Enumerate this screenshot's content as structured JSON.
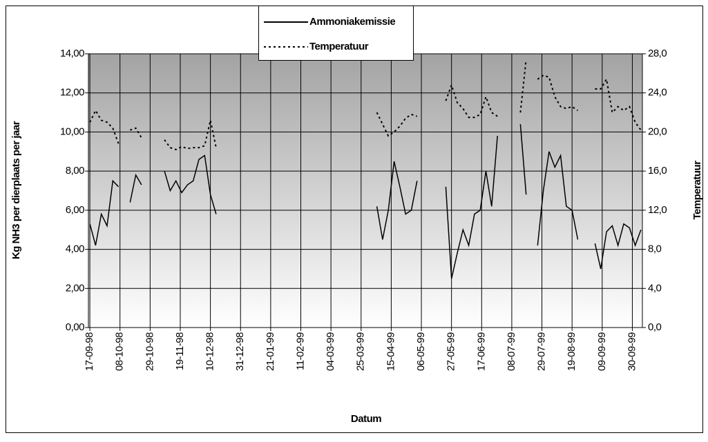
{
  "chart_data": {
    "type": "line",
    "x_label": "Datum",
    "y_label": "Kg NH3 per dierplaats per jaar",
    "y2_label": "Temperatuur",
    "x": [
      "17-09-98",
      "21-09-98",
      "25-09-98",
      "29-09-98",
      "03-10-98",
      "07-10-98",
      "11-10-98",
      "15-10-98",
      "19-10-98",
      "23-10-98",
      "27-10-98",
      "31-10-98",
      "04-11-98",
      "08-11-98",
      "12-11-98",
      "16-11-98",
      "20-11-98",
      "24-11-98",
      "28-11-98",
      "02-12-98",
      "06-12-98",
      "10-12-98",
      "14-12-98",
      "18-12-98",
      "22-12-98",
      "26-12-98",
      "30-12-98",
      "03-01-99",
      "07-01-99",
      "11-01-99",
      "15-01-99",
      "19-01-99",
      "23-01-99",
      "27-01-99",
      "31-01-99",
      "04-02-99",
      "08-02-99",
      "12-02-99",
      "16-02-99",
      "20-02-99",
      "24-02-99",
      "28-02-99",
      "04-03-99",
      "08-03-99",
      "12-03-99",
      "16-03-99",
      "20-03-99",
      "24-03-99",
      "28-03-99",
      "01-04-99",
      "05-04-99",
      "09-04-99",
      "13-04-99",
      "17-04-99",
      "21-04-99",
      "25-04-99",
      "29-04-99",
      "03-05-99",
      "07-05-99",
      "11-05-99",
      "15-05-99",
      "19-05-99",
      "23-05-99",
      "27-05-99",
      "31-05-99",
      "04-06-99",
      "08-06-99",
      "12-06-99",
      "16-06-99",
      "20-06-99",
      "24-06-99",
      "28-06-99",
      "02-07-99",
      "06-07-99",
      "10-07-99",
      "14-07-99",
      "18-07-99",
      "22-07-99",
      "26-07-99",
      "30-07-99",
      "03-08-99",
      "07-08-99",
      "11-08-99",
      "15-08-99",
      "19-08-99",
      "23-08-99",
      "27-08-99",
      "31-08-99",
      "04-09-99",
      "08-09-99",
      "12-09-99",
      "16-09-99",
      "20-09-99",
      "24-09-99",
      "28-09-99",
      "02-10-99",
      "06-10-99"
    ],
    "xlim": [
      "16-09-98",
      "07-10-99"
    ],
    "xticks": [
      "17-09-98",
      "08-10-98",
      "29-10-98",
      "19-11-98",
      "10-12-98",
      "31-12-98",
      "21-01-99",
      "11-02-99",
      "04-03-99",
      "25-03-99",
      "15-04-99",
      "06-05-99",
      "27-05-99",
      "17-06-99",
      "08-07-99",
      "29-07-99",
      "19-08-99",
      "09-09-99",
      "30-09-99"
    ],
    "ylim": [
      0,
      14
    ],
    "yticks": [
      {
        "value": 0,
        "label": "0,00"
      },
      {
        "value": 2,
        "label": "2,00"
      },
      {
        "value": 4,
        "label": "4,00"
      },
      {
        "value": 6,
        "label": "6,00"
      },
      {
        "value": 8,
        "label": "8,00"
      },
      {
        "value": 10,
        "label": "10,00"
      },
      {
        "value": 12,
        "label": "12,00"
      },
      {
        "value": 14,
        "label": "14,00"
      }
    ],
    "y2lim": [
      0,
      28
    ],
    "y2ticks": [
      {
        "value": 0,
        "label": "0,0"
      },
      {
        "value": 4,
        "label": "4,0"
      },
      {
        "value": 8,
        "label": "8,0"
      },
      {
        "value": 12,
        "label": "12,0"
      },
      {
        "value": 16,
        "label": "16,0"
      },
      {
        "value": 20,
        "label": "20,0"
      },
      {
        "value": 24,
        "label": "24,0"
      },
      {
        "value": 28,
        "label": "28,0"
      }
    ],
    "grid": true,
    "series": [
      {
        "name": "Ammoniakemissie",
        "color": "#000000",
        "dash": "solid",
        "values": [
          5.3,
          4.2,
          5.8,
          5.2,
          7.5,
          7.2,
          null,
          6.4,
          7.8,
          7.3,
          null,
          null,
          null,
          8.0,
          7.0,
          7.5,
          6.9,
          7.3,
          7.5,
          8.6,
          8.8,
          6.8,
          5.8,
          null,
          null,
          null,
          null,
          null,
          null,
          null,
          null,
          null,
          null,
          null,
          null,
          null,
          null,
          null,
          null,
          null,
          null,
          null,
          null,
          null,
          null,
          null,
          null,
          null,
          null,
          null,
          6.2,
          4.5,
          6.0,
          8.5,
          7.2,
          5.8,
          6.0,
          7.5,
          null,
          null,
          null,
          null,
          7.2,
          2.5,
          3.8,
          5.0,
          4.2,
          5.8,
          6.0,
          8.0,
          6.2,
          9.8,
          null,
          null,
          null,
          10.4,
          6.8,
          null,
          4.2,
          7.0,
          9.0,
          8.2,
          8.8,
          6.2,
          6.0,
          4.5,
          null,
          null,
          4.3,
          3.0,
          4.9,
          5.2,
          4.2,
          5.3,
          5.1,
          4.2,
          5.0
        ]
      },
      {
        "name": "Temperatuur",
        "color": "#000000",
        "dash": "dotted",
        "axis": "y2",
        "values": [
          21.0,
          22.2,
          21.2,
          21.0,
          20.4,
          18.8,
          null,
          20.2,
          20.4,
          19.4,
          null,
          null,
          null,
          19.2,
          18.4,
          18.2,
          18.5,
          18.3,
          18.4,
          18.4,
          18.6,
          21.2,
          18.4,
          null,
          null,
          null,
          null,
          null,
          null,
          null,
          null,
          null,
          null,
          null,
          null,
          null,
          null,
          null,
          null,
          null,
          null,
          null,
          null,
          null,
          null,
          null,
          null,
          null,
          null,
          null,
          22.0,
          20.8,
          19.6,
          20.0,
          20.6,
          21.4,
          21.8,
          21.6,
          null,
          null,
          null,
          null,
          23.2,
          24.8,
          23.0,
          22.4,
          21.5,
          21.5,
          21.8,
          23.6,
          22.0,
          21.6,
          null,
          null,
          null,
          22.0,
          27.4,
          null,
          25.4,
          25.8,
          25.6,
          23.6,
          22.6,
          22.4,
          22.6,
          22.2,
          null,
          null,
          24.4,
          24.4,
          25.4,
          22.0,
          22.6,
          22.2,
          22.6,
          21.0,
          20.2
        ]
      }
    ]
  }
}
